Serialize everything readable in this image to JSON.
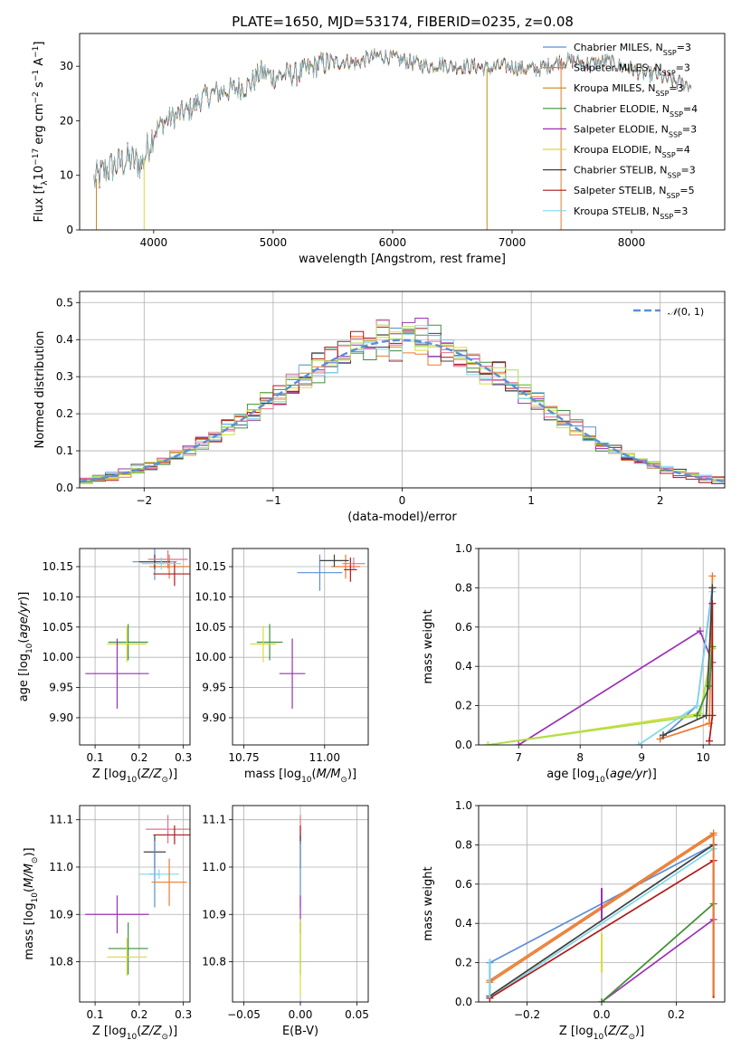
{
  "figure": {
    "title": "PLATE=1650, MJD=53174, FIBERID=0235, z=0.08"
  },
  "colors": {
    "Chabrier MILES": "#5b8fd6",
    "Salpeter MILES": "#ea7b2f",
    "Kroupa MILES": "#c68a1a",
    "Chabrier ELODIE": "#3f8f3f",
    "Salpeter ELODIE": "#9b30b5",
    "Kroupa ELODIE": "#d8dc3a",
    "Chabrier STELIB": "#404040",
    "Salpeter STELIB": "#b01818",
    "Kroupa STELIB": "#7fd8e8",
    "Extra pink": "#e5708f",
    "Extra lime": "#a9e04a",
    "Gaussian": "#5b8fd6"
  },
  "chart_data": [
    {
      "id": "spectrum",
      "type": "line",
      "title": "PLATE=1650, MJD=53174, FIBERID=0235, z=0.08",
      "xlabel": "wavelength [Angstrom, rest frame]",
      "ylabel": "Flux [f_λ 10^-17 erg cm^-2 s^-1 A^-1]",
      "xlim": [
        3380,
        8780
      ],
      "ylim": [
        0,
        36
      ],
      "xticks": [
        4000,
        5000,
        6000,
        7000,
        8000
      ],
      "yticks": [
        0,
        10,
        20,
        30
      ],
      "grid": false,
      "legend_position": "upper right",
      "legend": [
        {
          "name": "Chabrier MILES, N_SSP=3",
          "base": "Chabrier MILES, N",
          "sub": "SSP",
          "tail": "=3",
          "color": "Chabrier MILES"
        },
        {
          "name": "Salpeter MILES, N_SSP=3",
          "base": "Salpeter MILES, N",
          "sub": "SSP",
          "tail": "=3",
          "color": "Salpeter MILES"
        },
        {
          "name": "Kroupa MILES, N_SSP=3",
          "base": "Kroupa MILES, N",
          "sub": "SSP",
          "tail": "=3",
          "color": "Kroupa MILES"
        },
        {
          "name": "Chabrier ELODIE, N_SSP=4",
          "base": "Chabrier ELODIE, N",
          "sub": "SSP",
          "tail": "=4",
          "color": "Chabrier ELODIE"
        },
        {
          "name": "Salpeter ELODIE, N_SSP=3",
          "base": "Salpeter ELODIE, N",
          "sub": "SSP",
          "tail": "=3",
          "color": "Salpeter ELODIE"
        },
        {
          "name": "Kroupa ELODIE, N_SSP=4",
          "base": "Kroupa ELODIE, N",
          "sub": "SSP",
          "tail": "=4",
          "color": "Kroupa ELODIE"
        },
        {
          "name": "Chabrier STELIB, N_SSP=3",
          "base": "Chabrier STELIB, N",
          "sub": "SSP",
          "tail": "=3",
          "color": "Chabrier STELIB"
        },
        {
          "name": "Salpeter STELIB, N_SSP=5",
          "base": "Salpeter STELIB, N",
          "sub": "SSP",
          "tail": "=5",
          "color": "Salpeter STELIB"
        },
        {
          "name": "Kroupa STELIB, N_SSP=3",
          "base": "Kroupa STELIB, N",
          "sub": "SSP",
          "tail": "=3",
          "color": "Kroupa STELIB"
        }
      ],
      "envelope": {
        "x": [
          3500,
          3600,
          3700,
          3800,
          3900,
          4000,
          4100,
          4200,
          4300,
          4400,
          4500,
          4600,
          4700,
          4800,
          4900,
          5000,
          5100,
          5200,
          5300,
          5400,
          5500,
          5600,
          5700,
          5800,
          5900,
          6000,
          6100,
          6200,
          6300,
          6400,
          6500,
          6600,
          6700,
          6800,
          6900,
          7000,
          7100,
          7200,
          7300,
          7400,
          7500,
          7600,
          7700,
          7800,
          7900,
          8000,
          8100,
          8200,
          8300,
          8400,
          8500
        ],
        "y": [
          9,
          11,
          12,
          13,
          12,
          18,
          20,
          21,
          22,
          24,
          25,
          25.5,
          26,
          26.5,
          29,
          28,
          28.5,
          28.5,
          29.5,
          30.5,
          30.5,
          31,
          30.5,
          31.5,
          32,
          31.5,
          31,
          30.5,
          30,
          30.5,
          30,
          30,
          30,
          29.5,
          30,
          30,
          29.5,
          29.5,
          30,
          31,
          31,
          30.5,
          30.5,
          31,
          30,
          29.5,
          28.5,
          28.5,
          27.5,
          27,
          26.5
        ]
      },
      "dropouts": [
        {
          "x": 3520,
          "series": "Kroupa MILES"
        },
        {
          "x": 3920,
          "series": "Kroupa ELODIE"
        },
        {
          "x": 6790,
          "series": "Kroupa MILES"
        },
        {
          "x": 7410,
          "series": "Salpeter MILES"
        }
      ]
    },
    {
      "id": "residuals",
      "type": "line",
      "xlabel": "(data-model)/error",
      "ylabel": "Normed distribution",
      "xlim": [
        -2.5,
        2.5
      ],
      "ylim": [
        0,
        0.53
      ],
      "xticks": [
        -2,
        -1,
        0,
        1,
        2
      ],
      "yticks": [
        0.0,
        0.1,
        0.2,
        0.3,
        0.4,
        0.5
      ],
      "grid": true,
      "legend_position": "upper right",
      "legend": [
        {
          "name": "N(0,1)",
          "color": "Gaussian",
          "style": "dashed"
        }
      ],
      "bin_width": 0.1
    },
    {
      "id": "age-vs-z",
      "type": "scatter",
      "xlabel": "Z [log10(Z/Z⊙)]",
      "ylabel": "age [log10(age/yr)]",
      "xlim": [
        0.065,
        0.315
      ],
      "ylim": [
        9.855,
        10.18
      ],
      "xticks": [
        0.1,
        0.2,
        0.3
      ],
      "yticks": [
        9.9,
        9.95,
        10.0,
        10.05,
        10.1,
        10.15
      ],
      "grid": true,
      "points": [
        {
          "series": "Chabrier MILES",
          "x": 0.235,
          "y": 10.158,
          "ex": 0.05,
          "ey": 0.03
        },
        {
          "series": "Salpeter MILES",
          "x": 0.268,
          "y": 10.15,
          "ex": 0.045,
          "ey": 0.02
        },
        {
          "series": "Chabrier STELIB",
          "x": 0.235,
          "y": 10.158,
          "ex": 0.035,
          "ey": 0.012
        },
        {
          "series": "Salpeter STELIB",
          "x": 0.28,
          "y": 10.138,
          "ex": 0.048,
          "ey": 0.02
        },
        {
          "series": "Extra pink",
          "x": 0.265,
          "y": 10.162,
          "ex": 0.045,
          "ey": 0.015
        },
        {
          "series": "Kroupa STELIB",
          "x": 0.25,
          "y": 10.155,
          "ex": 0.045,
          "ey": 0.01
        },
        {
          "series": "Chabrier ELODIE",
          "x": 0.175,
          "y": 10.025,
          "ex": 0.045,
          "ey": 0.03
        },
        {
          "series": "Kroupa ELODIE",
          "x": 0.172,
          "y": 10.022,
          "ex": 0.045,
          "ey": 0.03
        },
        {
          "series": "Salpeter ELODIE",
          "x": 0.15,
          "y": 9.973,
          "ex": 0.072,
          "ey": 0.058
        }
      ]
    },
    {
      "id": "age-vs-mass",
      "type": "scatter",
      "xlabel": "mass [log10(M/M⊙)]",
      "ylabel": "",
      "xlim": [
        10.715,
        11.135
      ],
      "ylim": [
        9.855,
        10.18
      ],
      "xticks": [
        10.75,
        11.0
      ],
      "yticks": [
        9.9,
        9.95,
        10.0,
        10.05,
        10.1,
        10.15
      ],
      "grid": true,
      "points": [
        {
          "series": "Chabrier MILES",
          "x": 10.985,
          "y": 10.14,
          "ex": 0.07,
          "ey": 0.03
        },
        {
          "series": "Salpeter MILES",
          "x": 11.065,
          "y": 10.15,
          "ex": 0.045,
          "ey": 0.02
        },
        {
          "series": "Chabrier STELIB",
          "x": 11.03,
          "y": 10.16,
          "ex": 0.045,
          "ey": 0.01
        },
        {
          "series": "Salpeter STELIB",
          "x": 11.08,
          "y": 10.145,
          "ex": 0.02,
          "ey": 0.02
        },
        {
          "series": "Extra pink",
          "x": 11.09,
          "y": 10.155,
          "ex": 0.035,
          "ey": 0.01
        },
        {
          "series": "Chabrier ELODIE",
          "x": 10.83,
          "y": 10.025,
          "ex": 0.04,
          "ey": 0.03
        },
        {
          "series": "Kroupa ELODIE",
          "x": 10.81,
          "y": 10.022,
          "ex": 0.04,
          "ey": 0.03
        },
        {
          "series": "Salpeter ELODIE",
          "x": 10.9,
          "y": 9.973,
          "ex": 0.04,
          "ey": 0.058
        }
      ]
    },
    {
      "id": "mass-weight-vs-age",
      "type": "line",
      "xlabel": "age [log10(age/yr)]",
      "ylabel": "mass weight",
      "xlim": [
        6.35,
        10.35
      ],
      "ylim": [
        0,
        1.0
      ],
      "xticks": [
        7,
        8,
        9,
        10
      ],
      "yticks": [
        0.0,
        0.2,
        0.4,
        0.6,
        0.8,
        1.0
      ],
      "grid": true,
      "series": [
        {
          "name": "Chabrier MILES",
          "x": [
            9.3,
            9.9,
            10.15
          ],
          "y": [
            0.03,
            0.2,
            0.8
          ]
        },
        {
          "name": "Salpeter MILES",
          "x": [
            9.3,
            10.1,
            10.15
          ],
          "y": [
            0.03,
            0.11,
            0.86
          ]
        },
        {
          "name": "Salpeter ELODIE",
          "x": [
            7.0,
            9.95,
            10.15
          ],
          "y": [
            0.0,
            0.58,
            0.42
          ]
        },
        {
          "name": "Kroupa ELODIE",
          "x": [
            6.5,
            9.95,
            10.15
          ],
          "y": [
            0.0,
            0.16,
            0.5
          ]
        },
        {
          "name": "Extra lime",
          "x": [
            6.5,
            9.95,
            10.15
          ],
          "y": [
            0.0,
            0.15,
            0.49
          ]
        },
        {
          "name": "Chabrier ELODIE",
          "x": [
            9.9,
            10.1,
            10.15
          ],
          "y": [
            0.15,
            0.3,
            0.5
          ]
        },
        {
          "name": "Kroupa STELIB",
          "x": [
            8.95,
            9.9,
            10.15
          ],
          "y": [
            0.0,
            0.2,
            0.78
          ]
        },
        {
          "name": "Chabrier STELIB",
          "x": [
            9.35,
            10.05,
            10.15
          ],
          "y": [
            0.05,
            0.15,
            0.8
          ]
        },
        {
          "name": "Salpeter STELIB",
          "x": [
            10.1,
            10.15,
            10.15
          ],
          "y": [
            0.02,
            0.15,
            0.72
          ]
        }
      ]
    },
    {
      "id": "mass-vs-z",
      "type": "scatter",
      "xlabel": "Z [log10(Z/Z⊙)]",
      "ylabel": "mass [log10(M/M⊙)]",
      "xlim": [
        0.065,
        0.315
      ],
      "ylim": [
        10.715,
        11.13
      ],
      "xticks": [
        0.1,
        0.2,
        0.3
      ],
      "yticks": [
        10.8,
        10.9,
        11.0,
        11.1
      ],
      "grid": true,
      "points": [
        {
          "series": "Extra pink",
          "x": 0.265,
          "y": 11.08,
          "ex": 0.05,
          "ey": 0.03
        },
        {
          "series": "Salpeter STELIB",
          "x": 0.28,
          "y": 11.068,
          "ex": 0.048,
          "ey": 0.02
        },
        {
          "series": "Chabrier STELIB",
          "x": 0.235,
          "y": 11.032,
          "ex": 0.025,
          "ey": 0.035
        },
        {
          "series": "Chabrier MILES",
          "x": 0.235,
          "y": 10.985,
          "ex": 0.012,
          "ey": 0.07
        },
        {
          "series": "Kroupa STELIB",
          "x": 0.245,
          "y": 10.985,
          "ex": 0.045,
          "ey": 0.01
        },
        {
          "series": "Salpeter MILES",
          "x": 0.268,
          "y": 10.968,
          "ex": 0.04,
          "ey": 0.05
        },
        {
          "series": "Salpeter ELODIE",
          "x": 0.15,
          "y": 10.9,
          "ex": 0.072,
          "ey": 0.04
        },
        {
          "series": "Chabrier ELODIE",
          "x": 0.175,
          "y": 10.828,
          "ex": 0.045,
          "ey": 0.055
        },
        {
          "series": "Kroupa ELODIE",
          "x": 0.172,
          "y": 10.81,
          "ex": 0.045,
          "ey": 0.04
        }
      ]
    },
    {
      "id": "mass-vs-ebv",
      "type": "scatter",
      "xlabel": "E(B-V)",
      "ylabel": "",
      "xlim": [
        -0.06,
        0.06
      ],
      "ylim": [
        10.715,
        11.13
      ],
      "xticks": [
        -0.05,
        0.0,
        0.05
      ],
      "yticks": [
        10.8,
        10.9,
        11.0,
        11.1
      ],
      "grid": true,
      "points": [
        {
          "series": "Extra pink",
          "x": 0.0,
          "y": 11.08,
          "ey": 0.03
        },
        {
          "series": "Salpeter STELIB",
          "x": 0.0,
          "y": 11.068,
          "ey": 0.02
        },
        {
          "series": "Chabrier STELIB",
          "x": 0.0,
          "y": 11.032,
          "ey": 0.035
        },
        {
          "series": "Chabrier MILES",
          "x": 0.0,
          "y": 10.985,
          "ey": 0.07
        },
        {
          "series": "Salpeter ELODIE",
          "x": 0.0,
          "y": 10.9,
          "ey": 0.04
        },
        {
          "series": "Chabrier ELODIE",
          "x": 0.0,
          "y": 10.828,
          "ey": 0.055
        },
        {
          "series": "Kroupa ELODIE",
          "x": 0.0,
          "y": 10.81,
          "ey": 0.08
        }
      ]
    },
    {
      "id": "mass-weight-vs-z",
      "type": "line",
      "xlabel": "Z [log10(Z/Z⊙)]",
      "ylabel": "mass weight",
      "xlim": [
        -0.33,
        0.33
      ],
      "ylim": [
        0,
        1.0
      ],
      "xticks": [
        -0.2,
        0.0,
        0.2
      ],
      "yticks": [
        0.0,
        0.2,
        0.4,
        0.6,
        0.8,
        1.0
      ],
      "grid": true,
      "series": [
        {
          "name": "Chabrier MILES",
          "x": [
            -0.3,
            0.3
          ],
          "y": [
            0.2,
            0.8
          ]
        },
        {
          "name": "Salpeter MILES",
          "x": [
            -0.3,
            0.3
          ],
          "y": [
            0.11,
            0.86
          ]
        },
        {
          "name": "Salpeter MILES",
          "x": [
            -0.3,
            0.3
          ],
          "y": [
            0.1,
            0.85
          ]
        },
        {
          "name": "Chabrier STELIB",
          "x": [
            -0.3,
            0.3
          ],
          "y": [
            0.03,
            0.8
          ]
        },
        {
          "name": "Kroupa STELIB",
          "x": [
            -0.3,
            0.3
          ],
          "y": [
            0.02,
            0.78
          ]
        },
        {
          "name": "Salpeter STELIB",
          "x": [
            -0.3,
            0.3
          ],
          "y": [
            0.02,
            0.72
          ]
        },
        {
          "name": "Salpeter ELODIE",
          "x": [
            0.0,
            0.3
          ],
          "y": [
            0.0,
            0.42
          ]
        },
        {
          "name": "Kroupa ELODIE",
          "x": [
            0.0,
            0.3
          ],
          "y": [
            0.0,
            0.5
          ]
        },
        {
          "name": "Chabrier ELODIE",
          "x": [
            0.0,
            0.3
          ],
          "y": [
            0.0,
            0.5
          ]
        }
      ],
      "vertical_segments": [
        {
          "series": "Salpeter ELODIE",
          "x": 0.0,
          "y0": 0.42,
          "y1": 0.58
        },
        {
          "series": "Kroupa ELODIE",
          "x": 0.0,
          "y0": 0.15,
          "y1": 0.35
        },
        {
          "series": "Salpeter STELIB",
          "x": 0.3,
          "y0": 0.02,
          "y1": 0.72
        },
        {
          "series": "Salpeter MILES",
          "x": 0.3,
          "y0": 0.03,
          "y1": 0.86
        },
        {
          "series": "Chabrier MILES",
          "x": -0.3,
          "y0": 0.03,
          "y1": 0.2
        },
        {
          "series": "Kroupa STELIB",
          "x": -0.3,
          "y0": 0.02,
          "y1": 0.22
        }
      ]
    }
  ]
}
